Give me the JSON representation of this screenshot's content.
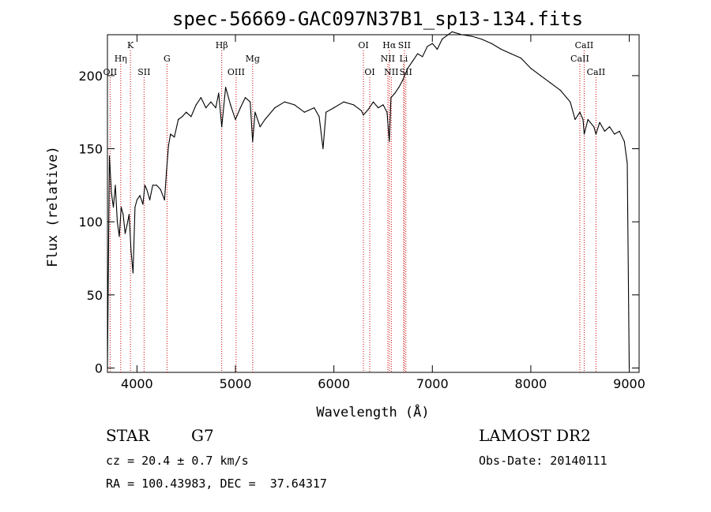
{
  "chart_data": {
    "type": "line",
    "title": "spec-56669-GAC097N37B1_sp13-134.fits",
    "xlabel": "Wavelength (Å)",
    "ylabel": "Flux (relative)",
    "xlim": [
      3700,
      9100
    ],
    "ylim": [
      -3,
      228
    ],
    "x_ticks": [
      4000,
      5000,
      6000,
      7000,
      8000,
      9000
    ],
    "y_ticks": [
      0,
      50,
      100,
      150,
      200
    ],
    "grid": false,
    "series": [
      {
        "x": [
          3700,
          3720,
          3740,
          3760,
          3780,
          3800,
          3820,
          3840,
          3860,
          3880,
          3900,
          3920,
          3940,
          3960,
          3980,
          4000,
          4030,
          4060,
          4080,
          4100,
          4130,
          4160,
          4200,
          4240,
          4280,
          4300,
          4320,
          4340,
          4380,
          4420,
          4460,
          4500,
          4550,
          4600,
          4650,
          4700,
          4750,
          4800,
          4830,
          4861,
          4900,
          4950,
          5000,
          5050,
          5100,
          5150,
          5175,
          5200,
          5250,
          5300,
          5400,
          5500,
          5600,
          5700,
          5800,
          5850,
          5890,
          5920,
          6000,
          6100,
          6200,
          6280,
          6300,
          6350,
          6400,
          6450,
          6500,
          6540,
          6563,
          6580,
          6620,
          6660,
          6700,
          6750,
          6800,
          6850,
          6900,
          6950,
          7000,
          7050,
          7100,
          7200,
          7300,
          7400,
          7500,
          7600,
          7700,
          7800,
          7900,
          8000,
          8100,
          8200,
          8300,
          8400,
          8450,
          8498,
          8530,
          8542,
          8580,
          8640,
          8662,
          8700,
          8750,
          8800,
          8850,
          8900,
          8950,
          8980,
          9000
        ],
        "y": [
          0,
          145,
          120,
          110,
          125,
          100,
          90,
          110,
          105,
          92,
          98,
          105,
          80,
          65,
          110,
          115,
          118,
          112,
          125,
          122,
          115,
          125,
          125,
          122,
          115,
          135,
          152,
          160,
          158,
          170,
          172,
          175,
          172,
          180,
          185,
          178,
          182,
          178,
          188,
          165,
          192,
          180,
          170,
          178,
          185,
          182,
          155,
          175,
          165,
          170,
          178,
          182,
          180,
          175,
          178,
          172,
          150,
          175,
          178,
          182,
          180,
          176,
          173,
          177,
          182,
          178,
          180,
          175,
          155,
          185,
          188,
          192,
          197,
          205,
          210,
          215,
          213,
          220,
          222,
          218,
          225,
          230,
          228,
          227,
          225,
          222,
          218,
          215,
          212,
          205,
          200,
          195,
          190,
          182,
          170,
          175,
          170,
          160,
          170,
          165,
          160,
          168,
          162,
          165,
          160,
          162,
          155,
          140,
          0
        ]
      }
    ],
    "line_markers": [
      {
        "label": "OII",
        "x": 3727,
        "row": 3
      },
      {
        "label": "Hη",
        "x": 3835,
        "row": 2
      },
      {
        "label": "K",
        "x": 3934,
        "row": 1
      },
      {
        "label": "SII",
        "x": 4072,
        "row": 3
      },
      {
        "label": "G",
        "x": 4305,
        "row": 2
      },
      {
        "label": "Hβ",
        "x": 4861,
        "row": 1
      },
      {
        "label": "OIII",
        "x": 5007,
        "row": 3
      },
      {
        "label": "Mg",
        "x": 5175,
        "row": 2
      },
      {
        "label": "OI",
        "x": 6300,
        "row": 1
      },
      {
        "label": "OI",
        "x": 6364,
        "row": 3
      },
      {
        "label": "Hα",
        "x": 6563,
        "row": 1
      },
      {
        "label": "NII",
        "x": 6548,
        "row": 2
      },
      {
        "label": "NII",
        "x": 6583,
        "row": 3
      },
      {
        "label": "SII",
        "x": 6716,
        "row": 1
      },
      {
        "label": "Li",
        "x": 6708,
        "row": 2
      },
      {
        "label": "SII",
        "x": 6731,
        "row": 3
      },
      {
        "label": "CaII",
        "x": 8542,
        "row": 1
      },
      {
        "label": "CaII",
        "x": 8498,
        "row": 2
      },
      {
        "label": "CaII",
        "x": 8662,
        "row": 3
      }
    ]
  },
  "info": {
    "object_class": "STAR",
    "subclass": "G7",
    "redshift_text": "cz = 20.4 ± 0.7 km/s",
    "coords_text": "RA = 100.43983, DEC =  37.64317",
    "survey": "LAMOST DR2",
    "obs_date": "Obs-Date: 20140111"
  },
  "colors": {
    "spectrum": "#000000",
    "marker_line": "#cc0000",
    "axes": "#000000"
  }
}
